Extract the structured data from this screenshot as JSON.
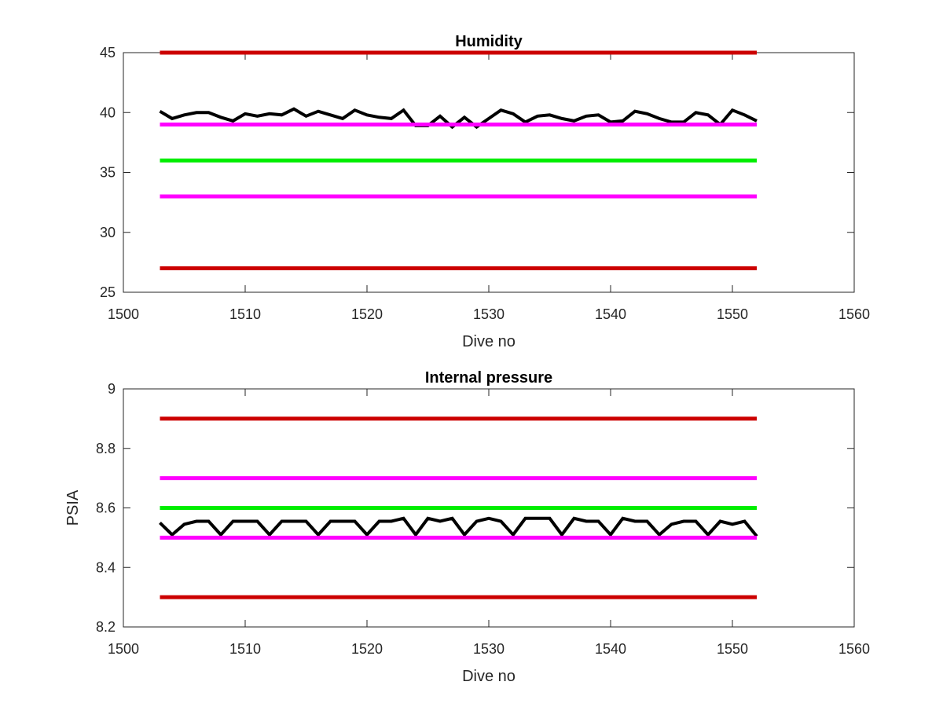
{
  "chart_data": [
    {
      "type": "line",
      "title": "Humidity",
      "xlabel": "Dive no",
      "ylabel": "",
      "xlim": [
        1500,
        1560
      ],
      "ylim": [
        25,
        45
      ],
      "xticks": [
        1500,
        1510,
        1520,
        1530,
        1540,
        1550,
        1560
      ],
      "yticks": [
        25,
        30,
        35,
        40,
        45
      ],
      "grid": false,
      "x": [
        1503,
        1504,
        1505,
        1506,
        1507,
        1508,
        1509,
        1510,
        1511,
        1512,
        1513,
        1514,
        1515,
        1516,
        1517,
        1518,
        1519,
        1520,
        1521,
        1522,
        1523,
        1524,
        1525,
        1526,
        1527,
        1528,
        1529,
        1530,
        1531,
        1532,
        1533,
        1534,
        1535,
        1536,
        1537,
        1538,
        1539,
        1540,
        1541,
        1542,
        1543,
        1544,
        1545,
        1546,
        1547,
        1548,
        1549,
        1550,
        1551,
        1552
      ],
      "series": [
        {
          "values": [
            40.1,
            39.5,
            39.8,
            40.0,
            40.0,
            39.6,
            39.3,
            39.9,
            39.7,
            39.9,
            39.8,
            40.3,
            39.7,
            40.1,
            39.8,
            39.5,
            40.2,
            39.8,
            39.6,
            39.5,
            40.2,
            38.9,
            38.9,
            39.7,
            38.8,
            39.6,
            38.8,
            39.5,
            40.2,
            39.9,
            39.2,
            39.7,
            39.8,
            39.5,
            39.3,
            39.7,
            39.8,
            39.2,
            39.3,
            40.1,
            39.9,
            39.5,
            39.2,
            39.2,
            40.0,
            39.8,
            39.0,
            40.2,
            39.8,
            39.3
          ],
          "color": "#000000",
          "style": "data"
        },
        {
          "values": [
            45,
            45
          ],
          "x": [
            1503,
            1552
          ],
          "color": "#cc0000",
          "style": "limit"
        },
        {
          "values": [
            39,
            39
          ],
          "x": [
            1503,
            1552
          ],
          "color": "#ff00ff",
          "style": "limit"
        },
        {
          "values": [
            36,
            36
          ],
          "x": [
            1503,
            1552
          ],
          "color": "#00ee00",
          "style": "limit"
        },
        {
          "values": [
            33,
            33
          ],
          "x": [
            1503,
            1552
          ],
          "color": "#ff00ff",
          "style": "limit"
        },
        {
          "values": [
            27,
            27
          ],
          "x": [
            1503,
            1552
          ],
          "color": "#cc0000",
          "style": "limit"
        }
      ]
    },
    {
      "type": "line",
      "title": "Internal pressure",
      "xlabel": "Dive no",
      "ylabel": "PSIA",
      "xlim": [
        1500,
        1560
      ],
      "ylim": [
        8.2,
        9
      ],
      "xticks": [
        1500,
        1510,
        1520,
        1530,
        1540,
        1550,
        1560
      ],
      "yticks": [
        8.2,
        8.4,
        8.6,
        8.8,
        9
      ],
      "grid": false,
      "x": [
        1503,
        1504,
        1505,
        1506,
        1507,
        1508,
        1509,
        1510,
        1511,
        1512,
        1513,
        1514,
        1515,
        1516,
        1517,
        1518,
        1519,
        1520,
        1521,
        1522,
        1523,
        1524,
        1525,
        1526,
        1527,
        1528,
        1529,
        1530,
        1531,
        1532,
        1533,
        1534,
        1535,
        1536,
        1537,
        1538,
        1539,
        1540,
        1541,
        1542,
        1543,
        1544,
        1545,
        1546,
        1547,
        1548,
        1549,
        1550,
        1551,
        1552
      ],
      "series": [
        {
          "values": [
            8.55,
            8.51,
            8.545,
            8.555,
            8.555,
            8.51,
            8.555,
            8.555,
            8.555,
            8.51,
            8.555,
            8.555,
            8.555,
            8.51,
            8.555,
            8.555,
            8.555,
            8.51,
            8.555,
            8.555,
            8.565,
            8.51,
            8.565,
            8.555,
            8.565,
            8.51,
            8.555,
            8.565,
            8.555,
            8.51,
            8.565,
            8.565,
            8.565,
            8.51,
            8.565,
            8.555,
            8.555,
            8.51,
            8.565,
            8.555,
            8.555,
            8.51,
            8.545,
            8.555,
            8.555,
            8.51,
            8.555,
            8.545,
            8.555,
            8.505
          ],
          "color": "#000000",
          "style": "data"
        },
        {
          "values": [
            8.9,
            8.9
          ],
          "x": [
            1503,
            1552
          ],
          "color": "#cc0000",
          "style": "limit"
        },
        {
          "values": [
            8.7,
            8.7
          ],
          "x": [
            1503,
            1552
          ],
          "color": "#ff00ff",
          "style": "limit"
        },
        {
          "values": [
            8.6,
            8.6
          ],
          "x": [
            1503,
            1552
          ],
          "color": "#00ee00",
          "style": "limit"
        },
        {
          "values": [
            8.5,
            8.5
          ],
          "x": [
            1503,
            1552
          ],
          "color": "#ff00ff",
          "style": "limit"
        },
        {
          "values": [
            8.3,
            8.3
          ],
          "x": [
            1503,
            1552
          ],
          "color": "#cc0000",
          "style": "limit"
        }
      ]
    }
  ]
}
